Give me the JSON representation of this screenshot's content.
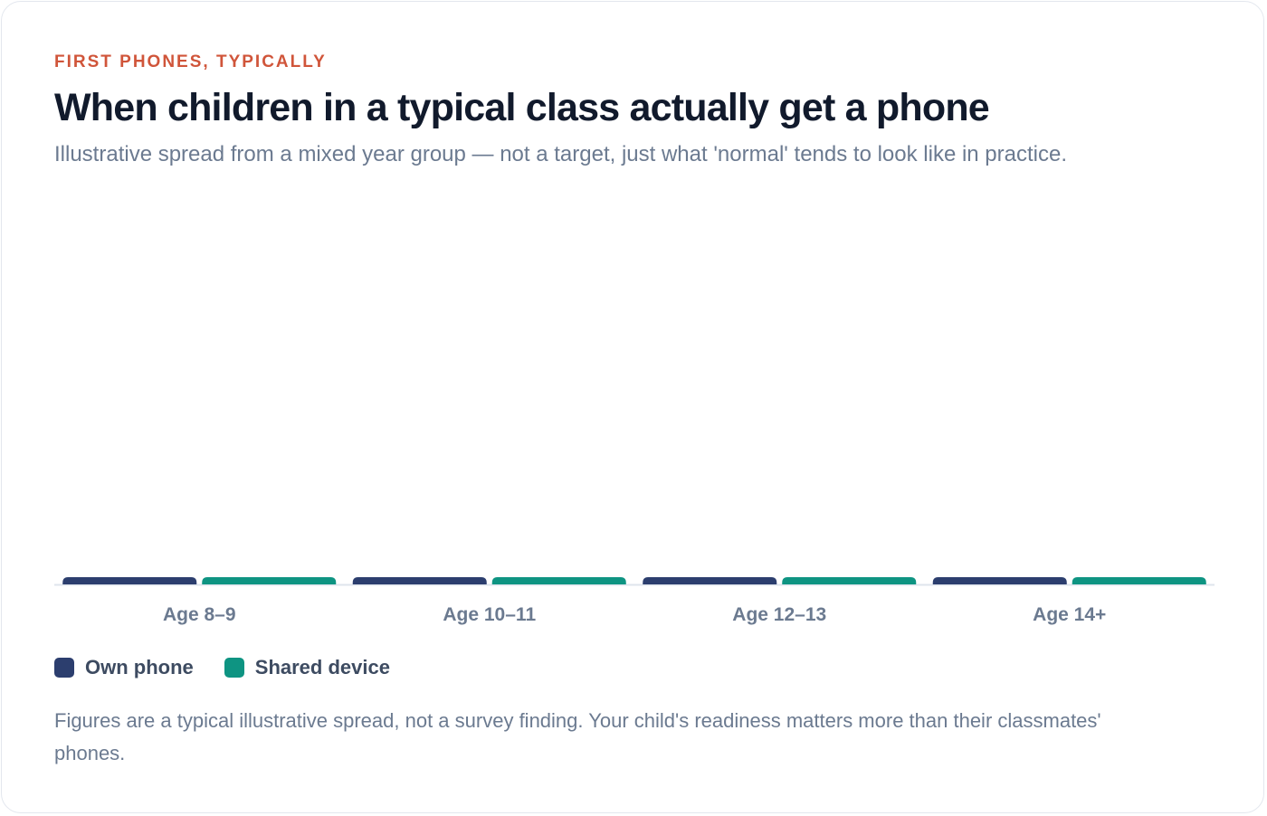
{
  "header": {
    "eyebrow": "FIRST PHONES, TYPICALLY",
    "title": "When children in a typical class actually get a phone",
    "subtitle": "Illustrative spread from a mixed year group — not a target, just what 'normal' tends to look like in practice."
  },
  "legend": {
    "items": [
      {
        "label": "Own phone",
        "color": "#2c3e6e"
      },
      {
        "label": "Shared device",
        "color": "#0e9482"
      }
    ]
  },
  "footnote": "Figures are a typical illustrative spread, not a survey finding. Your child's readiness matters more than their classmates' phones.",
  "colors": {
    "accent": "#d0553a",
    "own_phone": "#2c3e6e",
    "shared_device": "#0e9482",
    "axis": "#dfe4ec"
  },
  "chart_data": {
    "type": "bar",
    "categories": [
      "Age 8–9",
      "Age 10–11",
      "Age 12–13",
      "Age 14+"
    ],
    "series": [
      {
        "name": "Own phone",
        "values": [
          0,
          0,
          0,
          0
        ]
      },
      {
        "name": "Shared device",
        "values": [
          0,
          0,
          0,
          0
        ]
      }
    ],
    "title": "When children in a typical class actually get a phone",
    "xlabel": "",
    "ylabel": "",
    "grid": false,
    "legend_position": "bottom-left"
  }
}
